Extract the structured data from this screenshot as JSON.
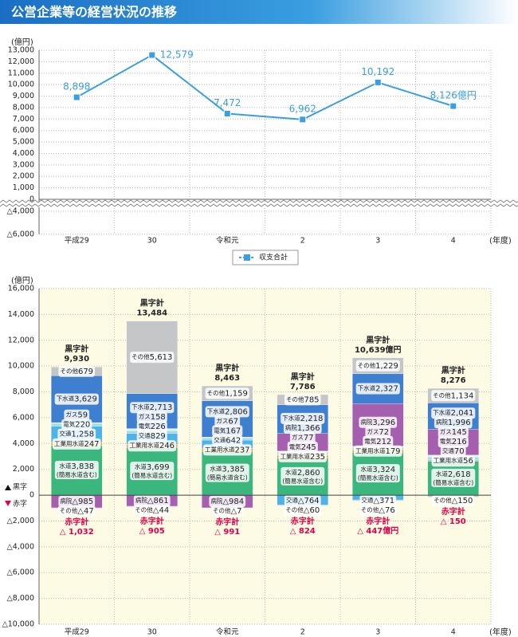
{
  "header": {
    "title": "公営企業等の経営状況の推移"
  },
  "chart_data": [
    {
      "type": "line",
      "unit": "(億円)",
      "x_unit": "(年度)",
      "categories": [
        "平成29",
        "30",
        "令和元",
        "2",
        "3",
        "4"
      ],
      "series": [
        {
          "name": "収支合計",
          "color": "#3a9ee0",
          "values": [
            8898,
            12579,
            7472,
            6962,
            10192,
            8126
          ],
          "value_labels": [
            "8,898",
            "12,579",
            "7,472",
            "6,962",
            "10,192",
            "8,126億円"
          ]
        }
      ],
      "ylim": [
        -6000,
        13000
      ],
      "yticks": [
        {
          "value": -6000,
          "label": "△6,000"
        },
        {
          "value": -4000,
          "label": "△4,000"
        },
        0,
        {
          "value": 1000,
          "label": "1,000"
        },
        {
          "value": 2000,
          "label": "2,000"
        },
        {
          "value": 3000,
          "label": "3,000"
        },
        {
          "value": 4000,
          "label": "4,000"
        },
        {
          "value": 5000,
          "label": "5,000"
        },
        {
          "value": 6000,
          "label": "6,000"
        },
        {
          "value": 7000,
          "label": "7,000"
        },
        {
          "value": 8000,
          "label": "8,000"
        },
        {
          "value": 9000,
          "label": "9,000"
        },
        {
          "value": 10000,
          "label": "10,000"
        },
        {
          "value": 11000,
          "label": "11,000"
        },
        {
          "value": 12000,
          "label": "12,000"
        },
        {
          "value": 13000,
          "label": "13,000"
        }
      ],
      "axis_break": true,
      "grid": true,
      "legend": "bottom"
    },
    {
      "type": "stacked_bar",
      "unit": "(億円)",
      "x_unit": "(年度)",
      "categories": [
        "平成29",
        "30",
        "令和元",
        "2",
        "3",
        "4"
      ],
      "surplus_label": "黒字",
      "deficit_label": "赤字",
      "series": [
        {
          "name": "水道",
          "note": "(簡易水道含む)",
          "color": "#3bb77e",
          "values": [
            3838,
            3699,
            3385,
            2860,
            3324,
            2618
          ],
          "value_labels": [
            "3,838",
            "3,699",
            "3,385",
            "2,860",
            "3,324",
            "2,618"
          ]
        },
        {
          "name": "工業用水道",
          "color": "#f0a040",
          "values": [
            247,
            246,
            237,
            235,
            179,
            56
          ],
          "value_labels": [
            "247",
            "246",
            "237",
            "235",
            "179",
            "56"
          ]
        },
        {
          "name": "交通",
          "color": "#4fb3e8",
          "values": [
            1258,
            829,
            642,
            -764,
            -371,
            70
          ],
          "value_labels": [
            "1,258",
            "829",
            "642",
            "△764",
            "△371",
            "70"
          ]
        },
        {
          "name": "電気",
          "color": "#9fdcef",
          "values": [
            220,
            226,
            167,
            245,
            212,
            216
          ],
          "value_labels": [
            "220",
            "226",
            "167",
            "245",
            "212",
            "216"
          ]
        },
        {
          "name": "ガス",
          "color": "#e4f3f8",
          "values": [
            59,
            158,
            67,
            77,
            72,
            145
          ],
          "value_labels": [
            "59",
            "158",
            "67",
            "77",
            "72",
            "145"
          ]
        },
        {
          "name": "病院",
          "color": "#a45fae",
          "values": [
            -985,
            -861,
            -984,
            1366,
            3296,
            1996
          ],
          "value_labels": [
            "△985",
            "△861",
            "△984",
            "1,366",
            "3,296",
            "1,996"
          ]
        },
        {
          "name": "下水道",
          "color": "#3f7fcf",
          "values": [
            3629,
            2713,
            2806,
            2218,
            2327,
            2041
          ],
          "value_labels": [
            "3,629",
            "2,713",
            "2,806",
            "2,218",
            "2,327",
            "2,041"
          ]
        },
        {
          "name": "その他",
          "color": "#c4c6c8",
          "values": [
            679,
            5613,
            1159,
            785,
            1229,
            1134
          ],
          "value_labels": [
            "679",
            "5,613",
            "1,159",
            "785",
            "1,229",
            "1,134"
          ]
        },
        {
          "name": "その他",
          "color": "#c4c6c8",
          "values": [
            -47,
            -44,
            -7,
            -60,
            -76,
            -150
          ],
          "value_labels": [
            "△47",
            "△44",
            "△7",
            "△60",
            "△76",
            "△150"
          ]
        }
      ],
      "totals": {
        "label": "黒字計",
        "values": [
          9930,
          13484,
          8463,
          7786,
          10639,
          8276
        ],
        "value_labels": [
          "9,930",
          "13,484",
          "8,463",
          "7,786",
          "10,639億円",
          "8,276"
        ]
      },
      "deficit_totals": {
        "label": "赤字計",
        "values": [
          -1032,
          -905,
          -991,
          -824,
          -447,
          -150
        ],
        "value_labels": [
          "△ 1,032",
          "△ 905",
          "△ 991",
          "△ 824",
          "△ 447億円",
          "△ 150"
        ]
      },
      "ylim": [
        -10000,
        16000
      ],
      "yticks": [
        {
          "value": -10000,
          "label": "△10,000"
        },
        {
          "value": -8000,
          "label": "△8,000"
        },
        {
          "value": -6000,
          "label": "△6,000"
        },
        {
          "value": -4000,
          "label": "△4,000"
        },
        {
          "value": -2000,
          "label": "△2,000"
        },
        0,
        {
          "value": 2000,
          "label": "2,000"
        },
        {
          "value": 4000,
          "label": "4,000"
        },
        {
          "value": 6000,
          "label": "6,000"
        },
        {
          "value": 8000,
          "label": "8,000"
        },
        {
          "value": 10000,
          "label": "10,000"
        },
        {
          "value": 12000,
          "label": "12,000"
        },
        {
          "value": 14000,
          "label": "14,000"
        },
        {
          "value": 16000,
          "label": "16,000"
        }
      ],
      "grid": true
    }
  ]
}
